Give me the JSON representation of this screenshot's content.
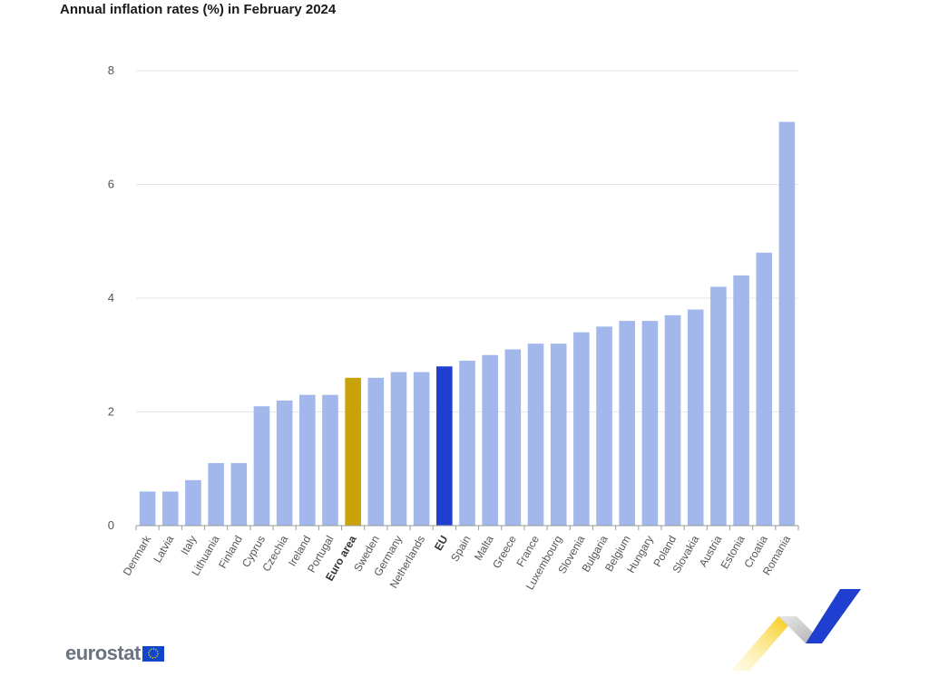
{
  "chart_data": {
    "type": "bar",
    "title": "Annual inflation rates (%) in February 2024",
    "xlabel": "",
    "ylabel": "",
    "ylim": [
      0,
      8
    ],
    "yticks": [
      0,
      2,
      4,
      6,
      8
    ],
    "grid": true,
    "categories": [
      "Denmark",
      "Latvia",
      "Italy",
      "Lithuania",
      "Finland",
      "Cyprus",
      "Czechia",
      "Ireland",
      "Portugal",
      "Euro area",
      "Sweden",
      "Germany",
      "Netherlands",
      "EU",
      "Spain",
      "Malta",
      "Greece",
      "France",
      "Luxembourg",
      "Slovenia",
      "Bulgaria",
      "Belgium",
      "Hungary",
      "Poland",
      "Slovakia",
      "Austria",
      "Estonia",
      "Croatia",
      "Romania"
    ],
    "values": [
      0.6,
      0.6,
      0.8,
      1.1,
      1.1,
      2.1,
      2.2,
      2.3,
      2.3,
      2.6,
      2.6,
      2.7,
      2.7,
      2.8,
      2.9,
      3.0,
      3.1,
      3.2,
      3.2,
      3.4,
      3.5,
      3.6,
      3.6,
      3.7,
      3.8,
      4.2,
      4.4,
      4.8,
      7.1
    ],
    "highlighted": {
      "Euro area": "#c9a20a",
      "EU": "#1f3fd0"
    },
    "bold_labels": [
      "Euro area",
      "EU"
    ],
    "colors": {
      "default": "#a3b8ea",
      "grid": "#e6e6e6",
      "axis": "#9a9a9a"
    }
  },
  "logo": {
    "text": "eurostat"
  }
}
